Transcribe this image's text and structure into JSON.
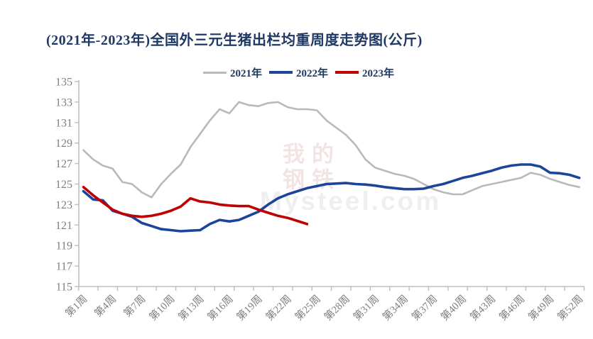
{
  "title": "(2021年-2023年)全国外三元生猪出栏均重周度走势图(公斤)",
  "watermark": {
    "line1": "我的钢铁",
    "line2": "Mysteel.com"
  },
  "colors": {
    "title": "#1f3864",
    "axis_line": "#bfbfbf",
    "tick_text": "#7f7f7f",
    "watermark_cn": "#f3e4e4",
    "watermark_en": "#efefef"
  },
  "chart_data": {
    "type": "line",
    "title": "(2021年-2023年)全国外三元生猪出栏均重周度走势图(公斤)",
    "xlabel": "",
    "ylabel": "",
    "ylim": [
      115,
      135
    ],
    "y_ticks": [
      115,
      117,
      119,
      121,
      123,
      125,
      127,
      129,
      131,
      133,
      135
    ],
    "x_weeks_total": 52,
    "x_label_interval": 3,
    "x_tick_labels": [
      "第1周",
      "第4周",
      "第7周",
      "第10周",
      "第13周",
      "第16周",
      "第19周",
      "第22周",
      "第25周",
      "第28周",
      "第31周",
      "第34周",
      "第37周",
      "第40周",
      "第43周",
      "第46周",
      "第49周",
      "第52周"
    ],
    "legend_position": "top",
    "grid": false,
    "series": [
      {
        "name": "2021年",
        "color": "#b9b9b9",
        "width": 2.6,
        "start_week": 1,
        "values": [
          128.3,
          127.4,
          126.8,
          126.5,
          125.2,
          125.0,
          124.2,
          123.7,
          125.0,
          126.0,
          126.9,
          128.6,
          129.9,
          131.2,
          132.3,
          131.9,
          133.0,
          132.7,
          132.6,
          132.9,
          133.0,
          132.5,
          132.3,
          132.3,
          132.2,
          131.2,
          130.5,
          129.8,
          128.8,
          127.4,
          126.6,
          126.3,
          126.0,
          125.8,
          125.5,
          125.0,
          124.5,
          124.2,
          124.0,
          124.0,
          124.4,
          124.8,
          125.0,
          125.2,
          125.4,
          125.6,
          126.1,
          125.9,
          125.5,
          125.2,
          124.9,
          124.7
        ]
      },
      {
        "name": "2022年",
        "color": "#1b459b",
        "width": 3.6,
        "start_week": 1,
        "values": [
          124.3,
          123.5,
          123.4,
          122.4,
          122.1,
          121.8,
          121.2,
          120.9,
          120.6,
          120.5,
          120.4,
          120.45,
          120.5,
          121.1,
          121.5,
          121.35,
          121.5,
          121.9,
          122.3,
          123.0,
          123.6,
          124.0,
          124.3,
          124.6,
          124.8,
          125.0,
          125.05,
          125.1,
          125.0,
          124.95,
          124.85,
          124.7,
          124.6,
          124.5,
          124.5,
          124.55,
          124.8,
          125.0,
          125.3,
          125.6,
          125.8,
          126.05,
          126.3,
          126.6,
          126.8,
          126.9,
          126.9,
          126.7,
          126.1,
          126.05,
          125.9,
          125.6
        ]
      },
      {
        "name": "2023年",
        "color": "#c00000",
        "width": 3.6,
        "start_week": 1,
        "values": [
          124.7,
          123.9,
          123.2,
          122.5,
          122.1,
          121.9,
          121.8,
          121.9,
          122.1,
          122.4,
          122.8,
          123.6,
          123.3,
          123.2,
          123.0,
          122.9,
          122.85,
          122.85,
          122.5,
          122.2,
          121.9,
          121.7,
          121.4,
          121.1
        ]
      }
    ]
  }
}
